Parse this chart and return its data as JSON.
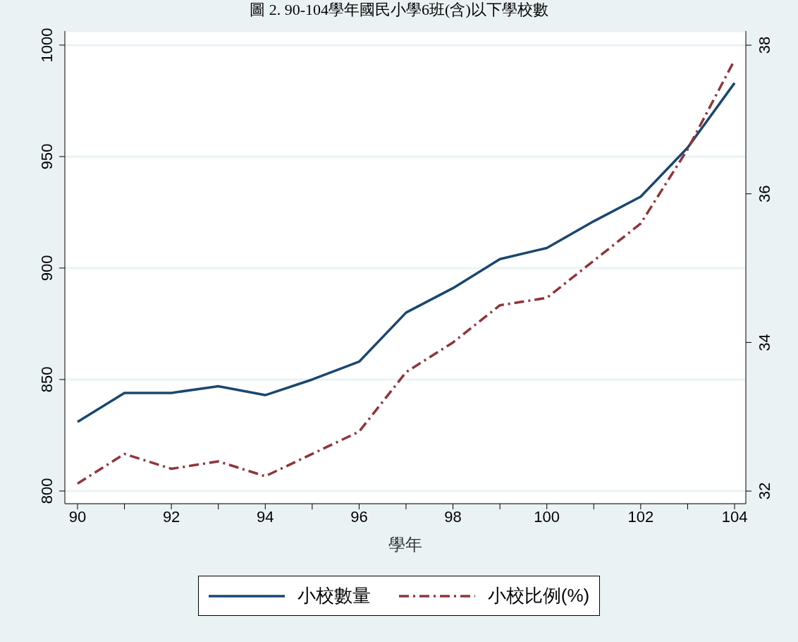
{
  "chart_data": {
    "type": "line",
    "title": "圖 2. 90-104學年國民小學6班(含)以下學校數",
    "xlabel": "學年",
    "x": [
      90,
      91,
      92,
      93,
      94,
      95,
      96,
      97,
      98,
      99,
      100,
      101,
      102,
      103,
      104
    ],
    "series": [
      {
        "name": "小校數量",
        "color": "#1a476f",
        "line_style": "solid",
        "values": [
          831,
          844,
          844,
          847,
          843,
          850,
          858,
          880,
          891,
          904,
          909,
          921,
          932,
          954,
          983
        ]
      },
      {
        "name": "小校比例(%)",
        "color": "#90353b",
        "line_style": "dashed",
        "axis": "y2",
        "values": [
          32.1,
          32.5,
          32.3,
          32.4,
          32.2,
          32.5,
          32.8,
          33.6,
          34.0,
          34.5,
          34.6,
          35.1,
          35.6,
          36.6,
          37.8
        ]
      }
    ],
    "xlim": [
      89.73,
      104.24
    ],
    "xticks": [
      90,
      {
        "value": 91,
        "label": null
      },
      92,
      {
        "value": 93,
        "label": null
      },
      94,
      {
        "value": 95,
        "label": null
      },
      96,
      {
        "value": 97,
        "label": null
      },
      98,
      {
        "value": 99,
        "label": null
      },
      100,
      {
        "value": 101,
        "label": null
      },
      102,
      {
        "value": 103,
        "label": null
      },
      104
    ],
    "ylim": [
      794.3,
      1006.3
    ],
    "yticks": [
      800,
      850,
      900,
      950,
      1000
    ],
    "y2lim": [
      31.83,
      38.19
    ],
    "y2ticks": [
      32,
      34,
      36,
      38
    ],
    "grid": "y",
    "legend": "bottom",
    "marker": "none"
  }
}
